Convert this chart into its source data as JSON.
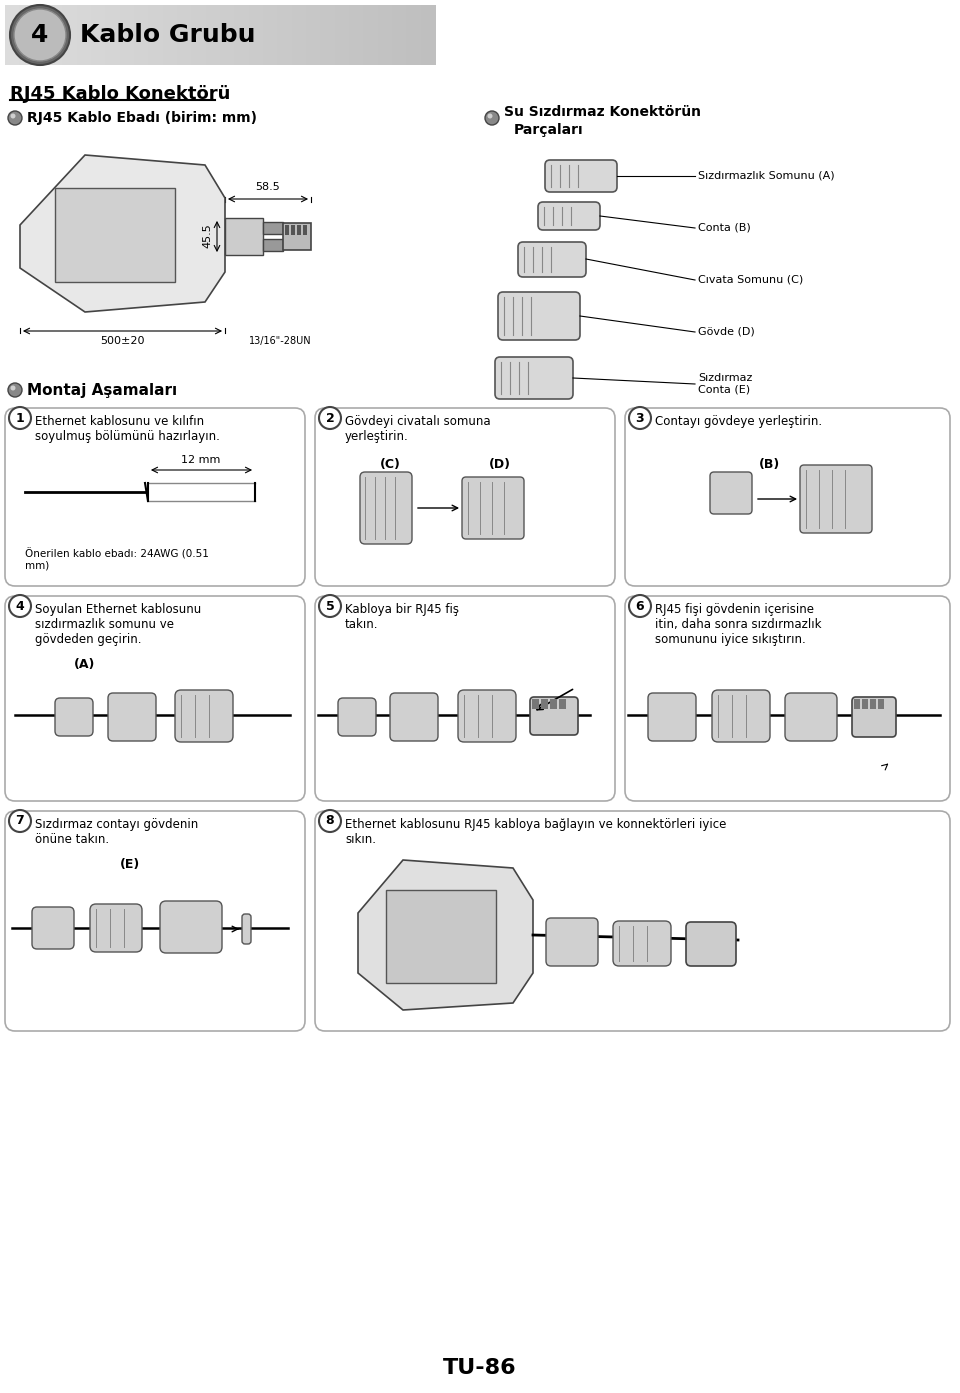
{
  "bg_color": "#ffffff",
  "page_width": 9.6,
  "page_height": 13.93,
  "dpi": 100,
  "header_bar": {
    "number": "4",
    "title": "Kablo Grubu"
  },
  "section_title": "RJ45 Kablo Konektörü",
  "subtitle_left": "RJ45 Kablo Ebadı (birim: mm)",
  "subtitle_right_1": "Su Sızdırmaz Konektörün",
  "subtitle_right_2": "Parçaları",
  "parts_labels": [
    "Sızdırmazlık Somunu (A)",
    "Conta (B)",
    "Cıvata Somunu (C)",
    "Gövde (D)",
    "Sızdırmaz\nConta (E)"
  ],
  "montaj_title": "Montaj Aşamaları",
  "step1_line1": "Ethernet kablosunu ve kılıfın",
  "step1_line2": "soyulmuş bölümünü hazırlayın.",
  "step1_sub1": "Önerilen kablo ebadı: 24AWG (0.51",
  "step1_sub2": "mm)",
  "step2_line1": "Gövdeyi civatalı somuna",
  "step2_line2": "yerleştirin.",
  "step3_line1": "Contayı gövdeye yerleştirin.",
  "step4_line1": "Soyulan Ethernet kablosunu",
  "step4_line2": "sızdırmazlık somunu ve",
  "step4_line3": "gövdeden geçirin.",
  "step5_line1": "Kabloya bir RJ45 fiş",
  "step5_line2": "takın.",
  "step6_line1": "RJ45 fişi gövdenin içerisine",
  "step6_line2": "itin, daha sonra sızdırmazlık",
  "step6_line3": "somununu iyice sıkıştırın.",
  "step7_line1": "Sızdırmaz contayı gövdenin",
  "step7_line2": "önüne takın.",
  "step8_line1": "Ethernet kablosunu RJ45 kabloya bağlayın ve konnektörleri iyice",
  "step8_line2": "sıkın.",
  "footer": "TU-86",
  "dim_58_5": "58.5",
  "dim_45_5": "45.5",
  "dim_500": "500±20",
  "dim_1316": "13/16\"-28UN",
  "dim_12mm": "12 mm",
  "label_C": "(C)",
  "label_D": "(D)",
  "label_B": "(B)",
  "label_A": "(A)",
  "label_E": "(E)",
  "dark_gray": "#444444",
  "mid_gray": "#888888",
  "light_gray": "#d0d0d0",
  "part_fill": "#d8d8d8",
  "box_edge": "#aaaaaa"
}
